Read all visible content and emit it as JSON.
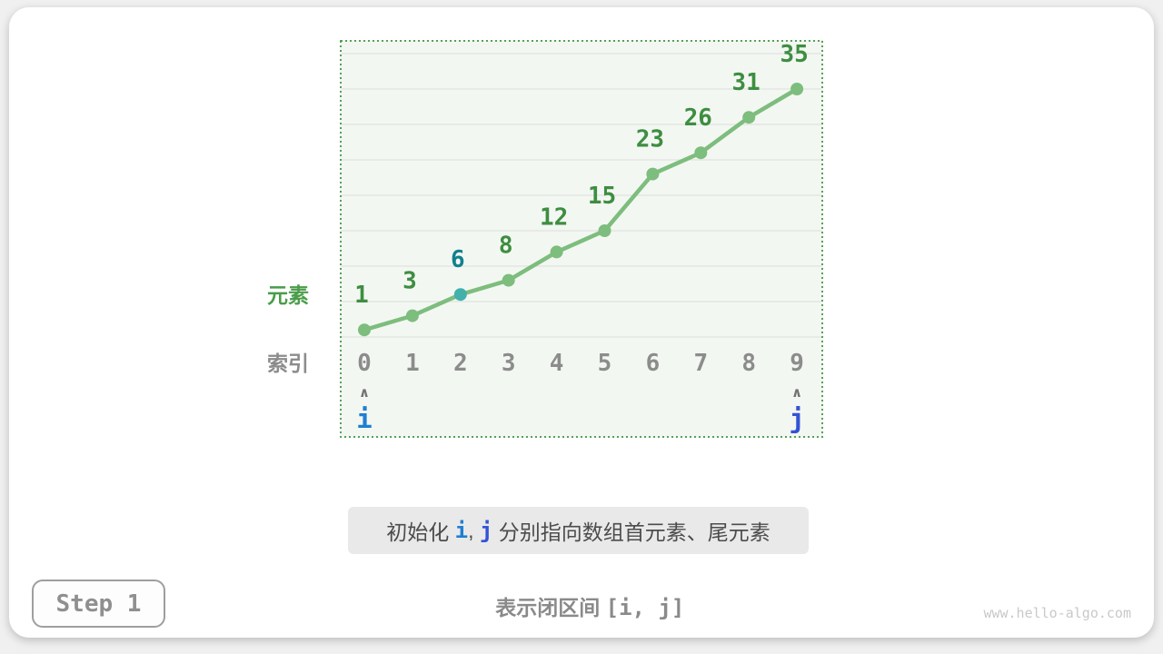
{
  "chart_data": {
    "type": "line",
    "x": [
      0,
      1,
      2,
      3,
      4,
      5,
      6,
      7,
      8,
      9
    ],
    "values": [
      1,
      3,
      6,
      8,
      12,
      15,
      23,
      26,
      31,
      35
    ],
    "ylim": [
      0,
      40
    ],
    "grid": true,
    "grid_step": 5,
    "legend_position": "none",
    "row_labels": {
      "values": "元素",
      "indices": "索引"
    },
    "series_color": "#7dbd7d",
    "label_color": "#3e8e41",
    "index_color": "#8c8c8c",
    "plot_bg": "#f3f7f2",
    "grid_color": "#e0e3de",
    "border_color": "#56a158",
    "caret": "∧",
    "caret_color": "#737373",
    "highlight": {
      "index": 2,
      "dot_color": "#43b0ac",
      "label_color": "#12808e"
    },
    "pointers": [
      {
        "name": "i",
        "index": 0,
        "color": "#1f7fd1"
      },
      {
        "name": "j",
        "index": 9,
        "color": "#3353d6"
      }
    ]
  },
  "caption": {
    "parts": [
      {
        "text": "初始化 "
      },
      {
        "text": "i"
      },
      {
        "text": ", "
      },
      {
        "text": "j"
      },
      {
        "text": " 分别指向数组首元素、尾元素"
      }
    ]
  },
  "subcaption": {
    "parts": [
      {
        "text": "表示闭区间 "
      },
      {
        "text": "[i, j]"
      }
    ]
  },
  "step": {
    "label": "Step 1"
  },
  "watermark": "www.hello-algo.com"
}
